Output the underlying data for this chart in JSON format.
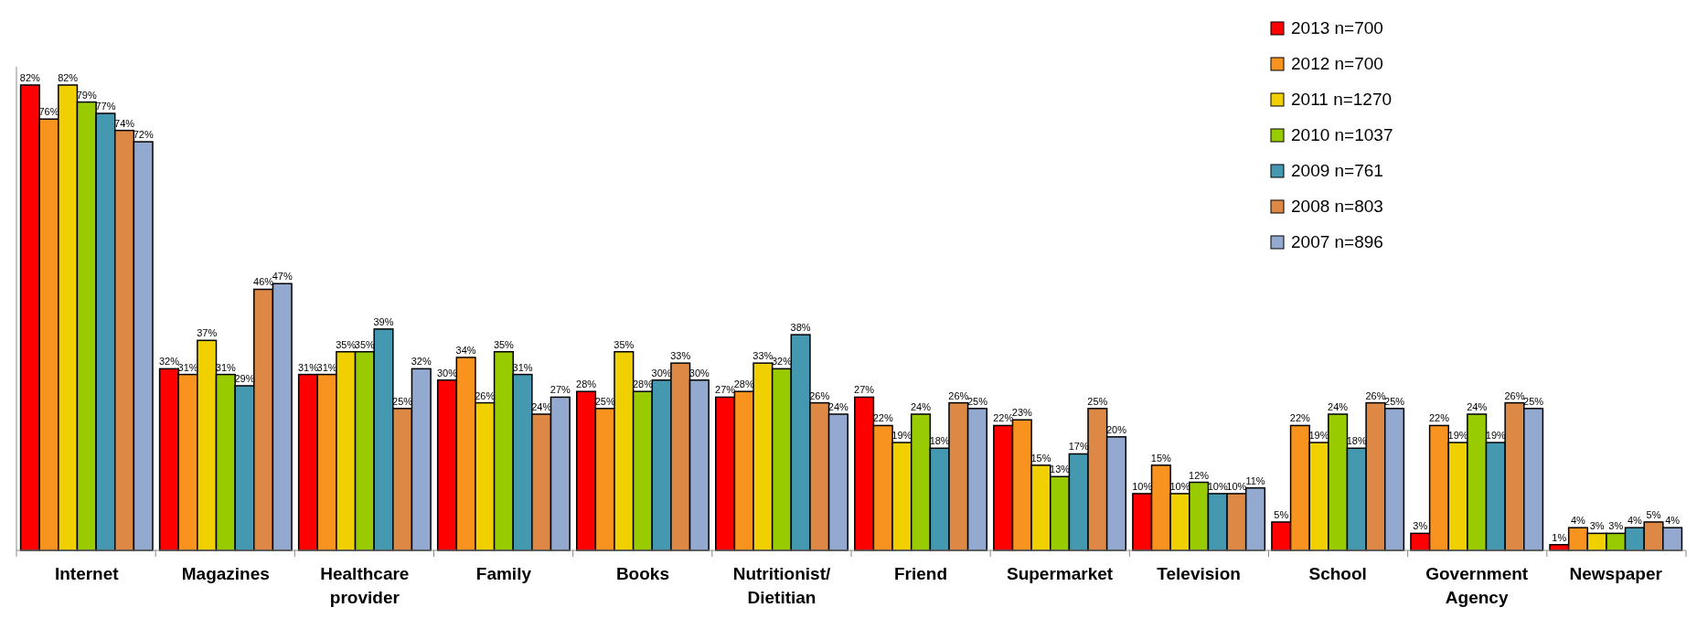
{
  "chart_data": {
    "type": "bar",
    "categories": [
      "Internet",
      "Magazines",
      "Healthcare\nprovider",
      "Family",
      "Books",
      "Nutritionist/\nDietitian",
      "Friend",
      "Supermarket",
      "Television",
      "School",
      "Government\nAgency",
      "Newspaper"
    ],
    "series": [
      {
        "name": "2013 n=700",
        "color": "#ff0000",
        "values": [
          82,
          32,
          31,
          30,
          28,
          27,
          27,
          22,
          10,
          5,
          3,
          1
        ],
        "value_labels": [
          "82%",
          "32%",
          "31%",
          "30%",
          "28%",
          "27%",
          "27%",
          "22%",
          "10%",
          "5%",
          "3%",
          "1%"
        ]
      },
      {
        "name": "2012 n=700",
        "color": "#f7931e",
        "values": [
          76,
          31,
          31,
          34,
          25,
          28,
          22,
          23,
          15,
          22,
          22,
          4
        ],
        "value_labels": [
          "76%",
          "31%",
          "31%",
          "34%",
          "25%",
          "28%",
          "22%",
          "23%",
          "15%",
          "22%",
          "22%",
          "4%"
        ]
      },
      {
        "name": "2011 n=1270",
        "color": "#f0d000",
        "values": [
          82,
          37,
          35,
          26,
          35,
          33,
          19,
          15,
          10,
          19,
          19,
          3
        ],
        "value_labels": [
          "82%",
          "37%",
          "35%",
          "26%",
          "35%",
          "33%",
          "19%",
          "15%",
          "10%",
          "19%",
          "19%",
          "3%"
        ]
      },
      {
        "name": "2010 n=1037",
        "color": "#99cc00",
        "values": [
          79,
          31,
          35,
          35,
          28,
          32,
          24,
          13,
          12,
          24,
          24,
          3
        ],
        "value_labels": [
          "79%",
          "31%",
          "35%",
          "35%",
          "28%",
          "32%",
          "24%",
          "13%",
          "12%",
          "24%",
          "24%",
          "3%"
        ]
      },
      {
        "name": "2009 n=761",
        "color": "#4499b0",
        "values": [
          77,
          29,
          39,
          31,
          30,
          38,
          18,
          17,
          10,
          18,
          19,
          4
        ],
        "value_labels": [
          "77%",
          "29%",
          "39%",
          "31%",
          "30%",
          "38%",
          "18%",
          "17%",
          "10%",
          "18%",
          "19%",
          "4%"
        ]
      },
      {
        "name": "2008 n=803",
        "color": "#dd8844",
        "values": [
          74,
          46,
          25,
          24,
          33,
          26,
          26,
          25,
          10,
          26,
          26,
          5
        ],
        "value_labels": [
          "74%",
          "46%",
          "25%",
          "24%",
          "33%",
          "26%",
          "26%",
          "25%",
          "10%",
          "26%",
          "26%",
          "5%"
        ]
      },
      {
        "name": "2007 n=896",
        "color": "#94a9d0",
        "values": [
          72,
          47,
          32,
          27,
          30,
          24,
          25,
          20,
          11,
          25,
          25,
          4
        ],
        "value_labels": [
          "72%",
          "47%",
          "32%",
          "27%",
          "30%",
          "24%",
          "25%",
          "20%",
          "11%",
          "25%",
          "25%",
          "4%"
        ]
      }
    ],
    "legend": "top right"
  }
}
